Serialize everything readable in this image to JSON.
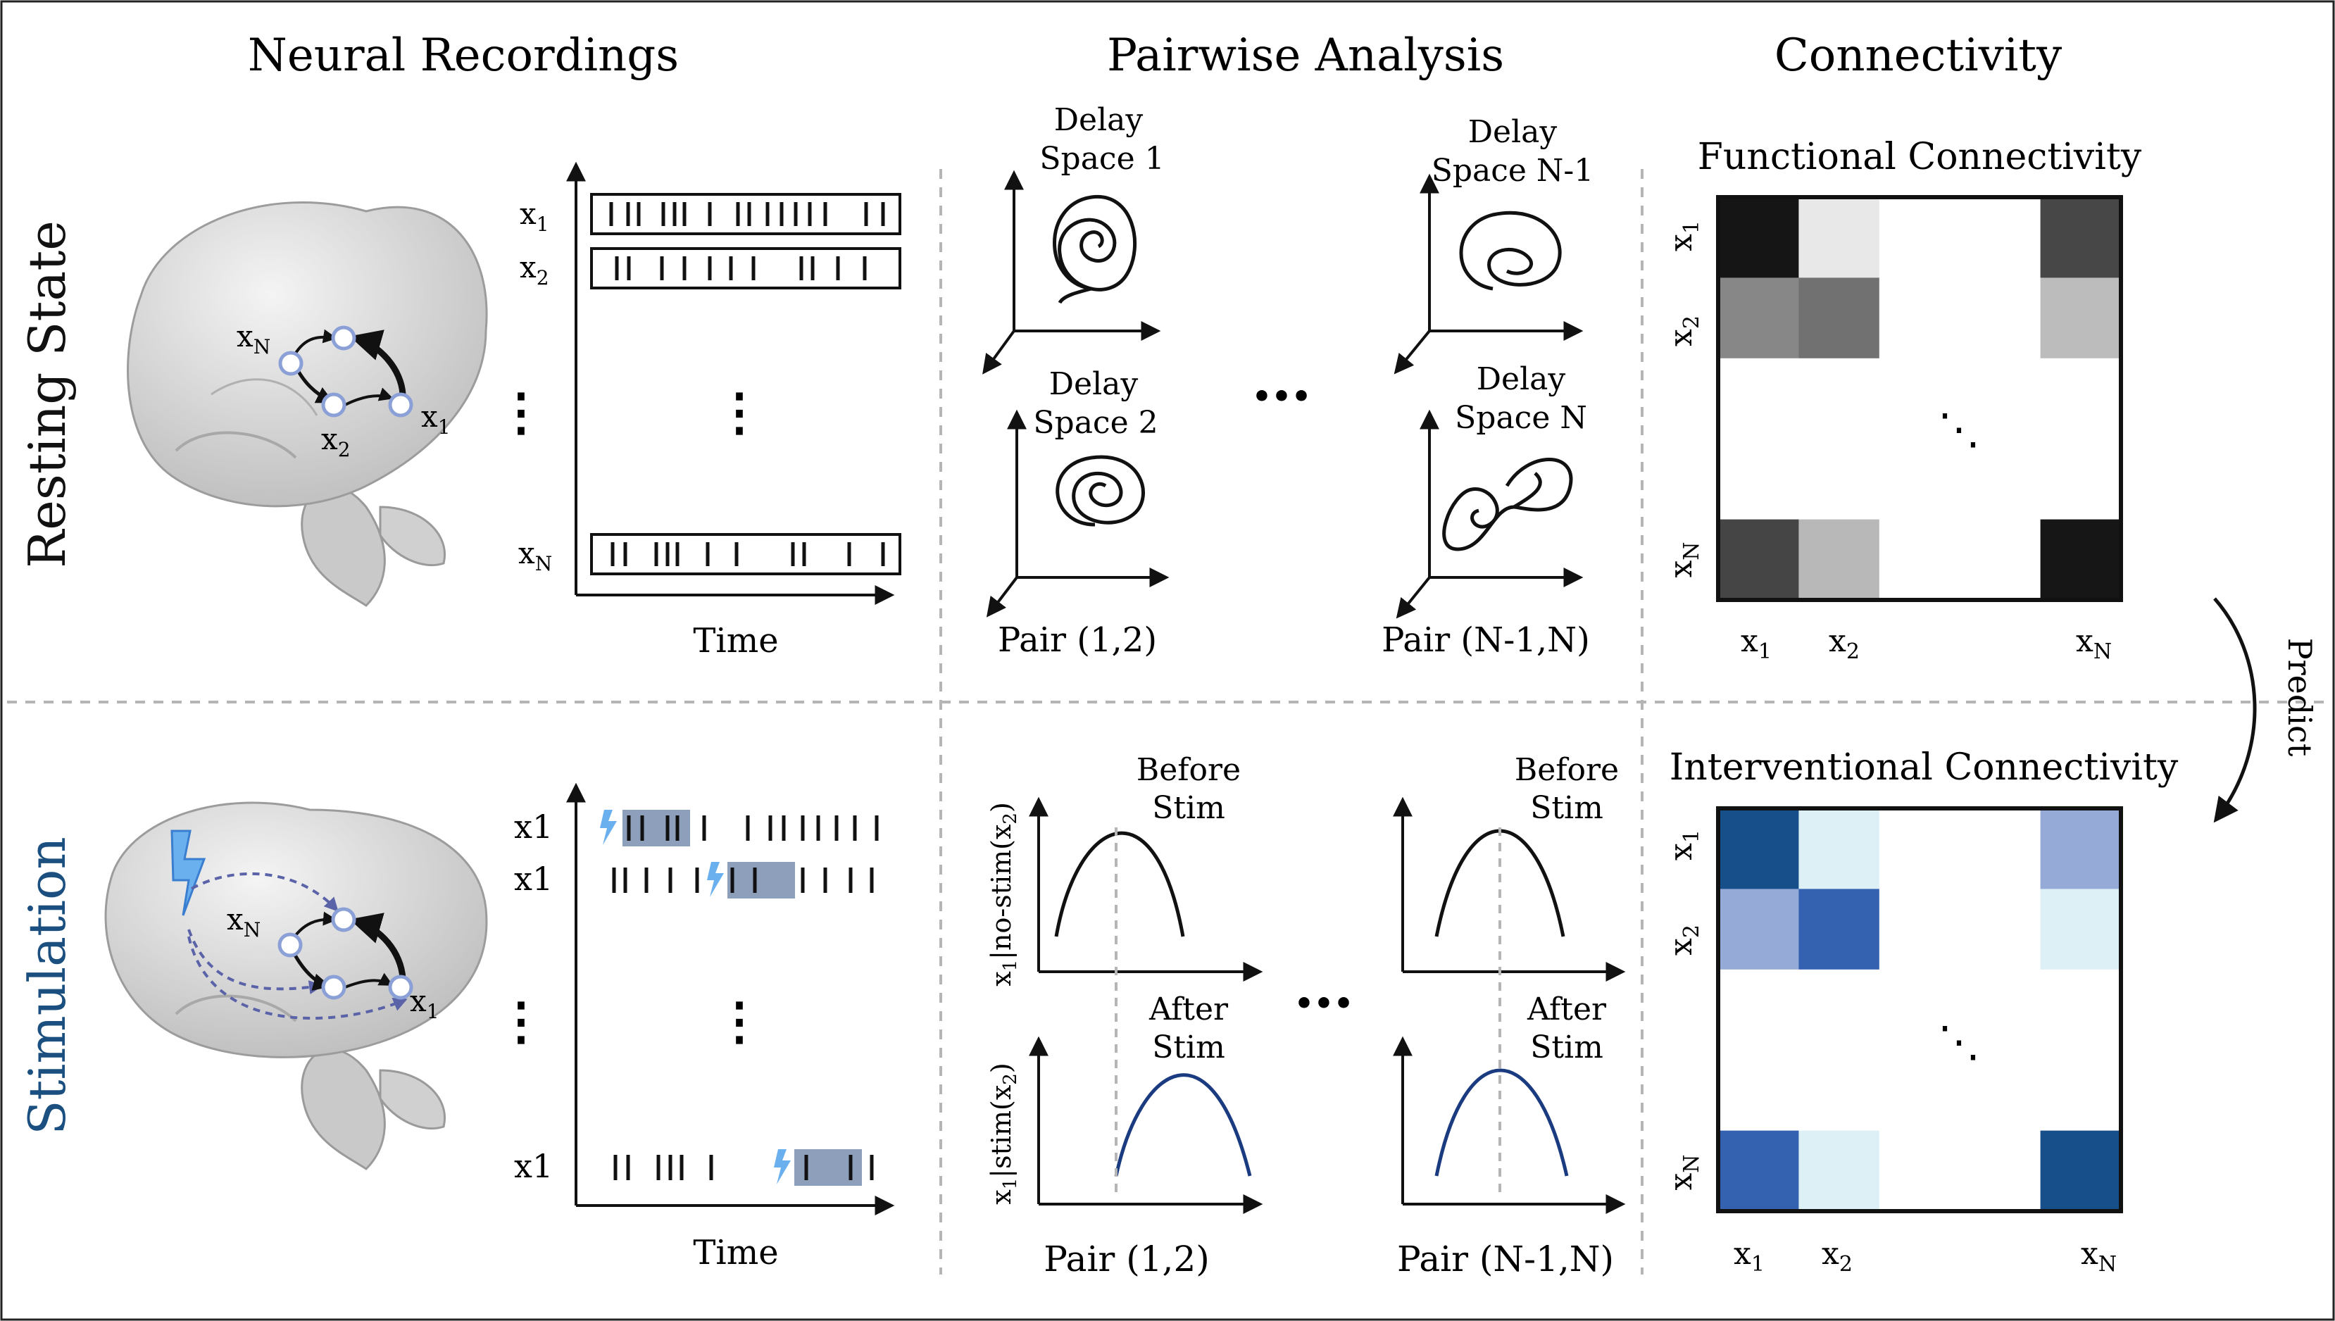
{
  "headers": {
    "neural": "Neural Recordings",
    "pairwise": "Pairwise Analysis",
    "connectivity": "Connectivity"
  },
  "rows": {
    "resting": "Resting State",
    "stimulation": "Stimulation"
  },
  "labels": {
    "x": "x",
    "sub1": "1",
    "sub2": "2",
    "subN": "N",
    "x1": "x1",
    "time": "Time",
    "vdots": "⋮",
    "hdots": "•••",
    "ddots": "⋱",
    "predict": "Predict"
  },
  "delay": {
    "d1a": "Delay",
    "d1b": "Space 1",
    "d2a": "Delay",
    "d2b": "Space 2",
    "dn1a": "Delay",
    "dn1b": "Space N-1",
    "dna": "Delay",
    "dnb": "Space N"
  },
  "pairs": {
    "p12": "Pair (1,2)",
    "pn": "Pair (N-1,N)"
  },
  "stim": {
    "before_a": "Before",
    "before_b": "Stim",
    "after_a": "After",
    "after_b": "Stim",
    "y_top_a": "x",
    "y_top_sub": "1",
    "y_top_b": "|no-stim(x",
    "y_top_sub2": "2",
    "y_top_c": ")",
    "y_bot_a": "x",
    "y_bot_sub": "1",
    "y_bot_b": "|stim(x",
    "y_bot_sub2": "2",
    "y_bot_c": ")"
  },
  "matrices": {
    "functional_title": "Functional Connectivity",
    "interventional_title": "Interventional Connectivity",
    "functional_cells": [
      [
        "#151515",
        "#e8e8e8",
        "#ffffff",
        "#ffffff",
        "#474747"
      ],
      [
        "#878787",
        "#717171",
        "#ffffff",
        "#ffffff",
        "#bcbcbc"
      ],
      [
        "#ffffff",
        "#ffffff",
        "#ffffff",
        "#ffffff",
        "#ffffff"
      ],
      [
        "#ffffff",
        "#ffffff",
        "#ffffff",
        "#ffffff",
        "#ffffff"
      ],
      [
        "#454545",
        "#b8b8b8",
        "#ffffff",
        "#ffffff",
        "#161616"
      ]
    ],
    "interventional_cells": [
      [
        "#164f8a",
        "#dcf0f6",
        "#ffffff",
        "#ffffff",
        "#95aad6"
      ],
      [
        "#95aad6",
        "#3461b0",
        "#ffffff",
        "#ffffff",
        "#dcf0f6"
      ],
      [
        "#ffffff",
        "#ffffff",
        "#ffffff",
        "#ffffff",
        "#ffffff"
      ],
      [
        "#ffffff",
        "#ffffff",
        "#ffffff",
        "#ffffff",
        "#ffffff"
      ],
      [
        "#3461b0",
        "#dcf0f6",
        "#ffffff",
        "#ffffff",
        "#164f8a"
      ]
    ]
  },
  "colors": {
    "stim_blue": "#1a4f7f",
    "curve_blue": "#1b3b80",
    "highlight": "#8e9fbb",
    "node": "#8aa0d6",
    "grid_dash": "#b5b5b5"
  }
}
